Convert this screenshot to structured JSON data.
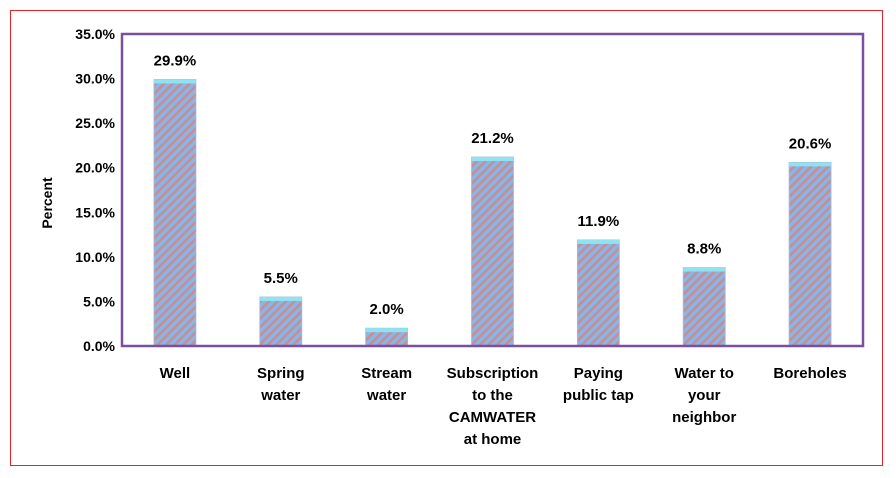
{
  "chart_data": {
    "type": "bar",
    "categories": [
      [
        "Well"
      ],
      [
        "Spring",
        "water"
      ],
      [
        "Stream",
        "water"
      ],
      [
        "Subscription",
        "to the",
        "CAMWATER",
        "at home"
      ],
      [
        "Paying",
        "public tap"
      ],
      [
        "Water to",
        "your",
        "neighbor"
      ],
      [
        "Boreholes"
      ]
    ],
    "values": [
      29.9,
      5.5,
      2.0,
      21.2,
      11.9,
      8.8,
      20.6
    ],
    "data_labels": [
      "29.9%",
      "5.5%",
      "2.0%",
      "21.2%",
      "11.9%",
      "8.8%",
      "20.6%"
    ],
    "ylabel": "Percent",
    "xlabel": "",
    "title": "",
    "ylim": [
      0,
      35
    ],
    "yticks": [
      "0.0%",
      "5.0%",
      "10.0%",
      "15.0%",
      "20.0%",
      "25.0%",
      "30.0%",
      "35.0%"
    ],
    "grid": false,
    "legend": "none",
    "colors": {
      "bar_stripe_a": "#8db4e2",
      "bar_stripe_b": "#c0909a",
      "bar_top": "#8fe3f0",
      "plot_border": "#7b4f9e",
      "frame_border": "#e0262b"
    }
  }
}
